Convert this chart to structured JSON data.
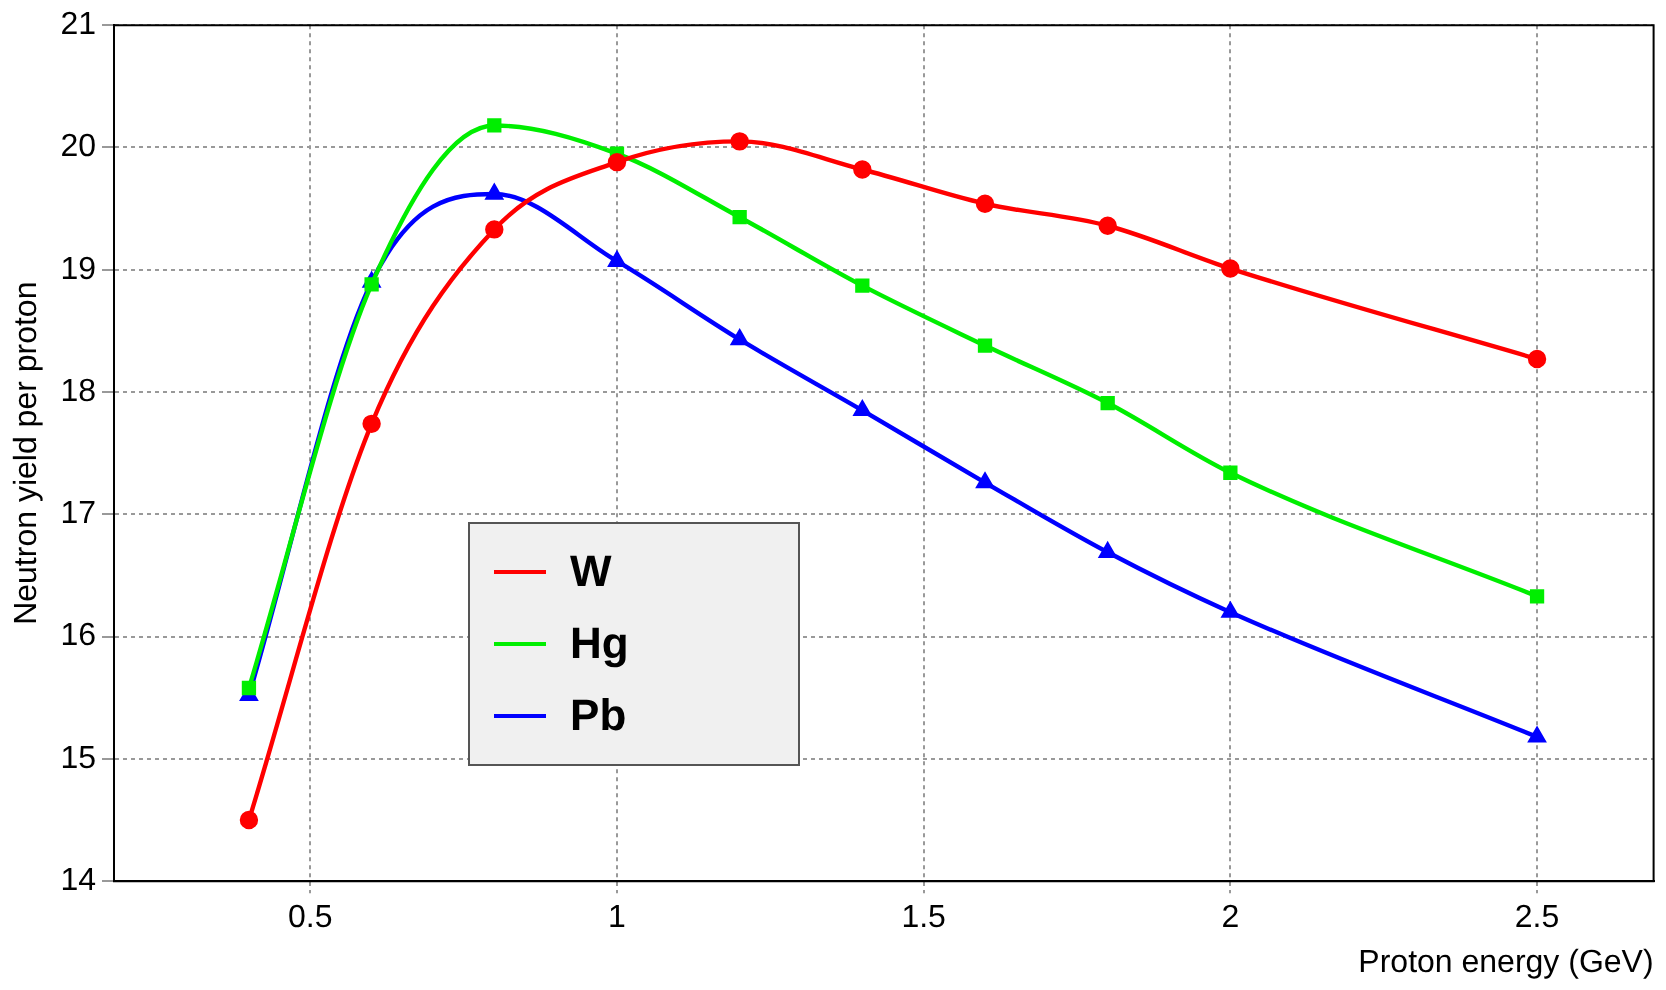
{
  "chart_data": {
    "type": "line",
    "xlabel": "Proton energy (GeV)",
    "ylabel": "Neutron yield per proton",
    "xlim": [
      0.18,
      2.69
    ],
    "xticks": [
      0.5,
      1,
      1.5,
      2,
      2.5
    ],
    "ylim": [
      14,
      21
    ],
    "yticks": [
      14,
      15,
      16,
      17,
      18,
      19,
      20,
      21
    ],
    "grid": true,
    "legend": "center left",
    "series": [
      {
        "name": "W",
        "color": "#ff0000",
        "marker": "circle",
        "x": [
          0.4,
          0.6,
          0.8,
          1.0,
          1.2,
          1.4,
          1.6,
          1.8,
          2.0,
          2.5
        ],
        "values": [
          14.5,
          17.74,
          19.33,
          19.88,
          20.05,
          19.82,
          19.54,
          19.36,
          19.01,
          18.27
        ]
      },
      {
        "name": "Hg",
        "color": "#00ee00",
        "marker": "square",
        "x": [
          0.4,
          0.6,
          0.8,
          1.0,
          1.2,
          1.4,
          1.6,
          1.8,
          2.0,
          2.5
        ],
        "values": [
          15.58,
          18.88,
          20.18,
          19.95,
          19.43,
          18.87,
          18.38,
          17.91,
          17.34,
          16.33
        ]
      },
      {
        "name": "Pb",
        "color": "#0000ff",
        "marker": "triangle",
        "x": [
          0.4,
          0.6,
          0.8,
          1.0,
          1.2,
          1.4,
          1.6,
          1.8,
          2.0,
          2.5
        ],
        "values": [
          15.52,
          18.9,
          19.62,
          19.07,
          18.43,
          17.85,
          17.26,
          16.69,
          16.2,
          15.18
        ]
      }
    ]
  }
}
